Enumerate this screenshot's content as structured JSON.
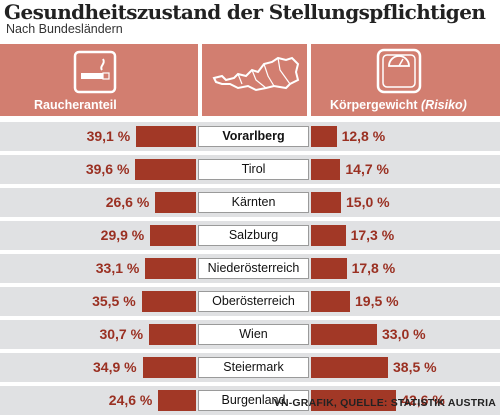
{
  "title": "Gesundheitszustand der Stellungspflichtigen",
  "subtitle": "Nach Bundesländern",
  "headers": {
    "left": "Raucheranteil",
    "right_main": "Körpergewicht",
    "right_italic": "(Risiko)"
  },
  "icons": {
    "left": "cigarette-icon",
    "center": "austria-map-icon",
    "right": "scale-icon"
  },
  "colors": {
    "header": "#d27e70",
    "bar": "#a23826",
    "value_text": "#9a3022",
    "row_background": "#e0e1e3"
  },
  "source": "VN-GRAFIK, QUELLE: STATISTIK AUSTRIA",
  "chart_data": {
    "type": "bar",
    "categories": [
      "Vorarlberg",
      "Tirol",
      "Kärnten",
      "Salzburg",
      "Niederösterreich",
      "Oberösterreich",
      "Wien",
      "Steiermark",
      "Burgenland"
    ],
    "series": [
      {
        "name": "Raucheranteil",
        "values": [
          39.1,
          39.6,
          26.6,
          29.9,
          33.1,
          35.5,
          30.7,
          34.9,
          24.6
        ],
        "labels": [
          "39,1 %",
          "39,6 %",
          "26,6 %",
          "29,9 %",
          "33,1 %",
          "35,5 %",
          "30,7 %",
          "34,9 %",
          "24,6 %"
        ]
      },
      {
        "name": "Körpergewicht (Risiko)",
        "values": [
          12.8,
          14.7,
          15.0,
          17.3,
          17.8,
          19.5,
          33.0,
          38.5,
          42.6
        ],
        "labels": [
          "12,8 %",
          "14,7 %",
          "15,0 %",
          "17,3 %",
          "17,8 %",
          "19,5 %",
          "33,0 %",
          "38,5 %",
          "42,6 %"
        ]
      }
    ]
  }
}
